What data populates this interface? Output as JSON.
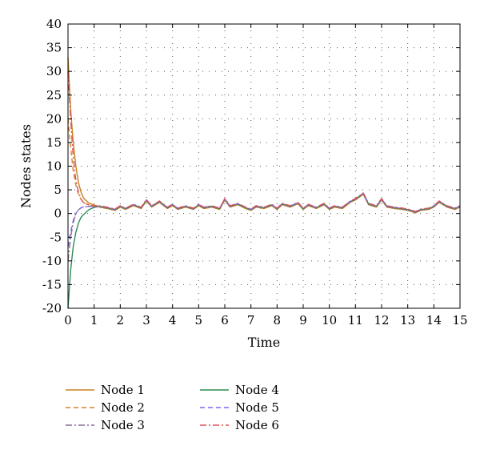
{
  "chart_data": {
    "type": "line",
    "title": "",
    "xlabel": "Time",
    "ylabel": "Nodes states",
    "xlim": [
      0,
      15
    ],
    "ylim": [
      -20,
      40
    ],
    "xticks": [
      0,
      1,
      2,
      3,
      4,
      5,
      6,
      7,
      8,
      9,
      10,
      11,
      12,
      13,
      14,
      15
    ],
    "yticks": [
      -20,
      -15,
      -10,
      -5,
      0,
      5,
      10,
      15,
      20,
      25,
      30,
      35,
      40
    ],
    "grid": true,
    "legend_position": "bottom",
    "consensus": {
      "t": [
        1.2,
        1.5,
        1.8,
        2.0,
        2.2,
        2.5,
        2.8,
        3.0,
        3.2,
        3.5,
        3.8,
        4.0,
        4.2,
        4.5,
        4.8,
        5.0,
        5.2,
        5.5,
        5.8,
        6.0,
        6.2,
        6.5,
        6.8,
        7.0,
        7.2,
        7.5,
        7.8,
        8.0,
        8.2,
        8.5,
        8.8,
        9.0,
        9.2,
        9.5,
        9.8,
        10.0,
        10.2,
        10.5,
        10.8,
        11.0,
        11.3,
        11.5,
        11.8,
        12.0,
        12.2,
        12.5,
        12.8,
        13.0,
        13.3,
        13.5,
        13.8,
        14.0,
        14.2,
        14.5,
        14.8,
        15.0
      ],
      "y": [
        1.5,
        1.2,
        0.8,
        1.5,
        1.0,
        1.8,
        1.2,
        2.8,
        1.5,
        2.5,
        1.2,
        1.8,
        1.0,
        1.5,
        1.0,
        1.8,
        1.2,
        1.5,
        1.0,
        3.0,
        1.5,
        2.0,
        1.2,
        0.8,
        1.5,
        1.2,
        1.8,
        1.0,
        2.0,
        1.5,
        2.2,
        1.0,
        1.8,
        1.2,
        2.0,
        1.0,
        1.5,
        1.2,
        2.5,
        3.0,
        4.2,
        2.0,
        1.5,
        3.0,
        1.5,
        1.2,
        1.0,
        0.8,
        0.3,
        0.8,
        1.0,
        1.5,
        2.5,
        1.5,
        1.0,
        1.5
      ]
    },
    "series": [
      {
        "name": "Node 1",
        "color": "#c8821e",
        "dash": "solid",
        "t": [
          0,
          0.1,
          0.2,
          0.3,
          0.4,
          0.5,
          0.6,
          0.8,
          1.0,
          1.2
        ],
        "y": [
          33,
          22,
          15,
          10,
          6.5,
          4.5,
          3.2,
          2.2,
          1.8,
          1.5
        ]
      },
      {
        "name": "Node 2",
        "color": "#d9822b",
        "dash": "6,4",
        "t": [
          0,
          0.1,
          0.2,
          0.3,
          0.4,
          0.5,
          0.6,
          0.8,
          1.0,
          1.2
        ],
        "y": [
          20,
          14,
          9,
          6,
          4,
          3,
          2.3,
          1.8,
          1.6,
          1.5
        ]
      },
      {
        "name": "Node 3",
        "color": "#8c6a9a",
        "dash": "8,3,2,3",
        "t": [
          0,
          0.1,
          0.2,
          0.3,
          0.4,
          0.5,
          0.6,
          0.8,
          1.0,
          1.2
        ],
        "y": [
          -10,
          -5,
          -2,
          0,
          0.8,
          1.2,
          1.4,
          1.5,
          1.5,
          1.5
        ]
      },
      {
        "name": "Node 4",
        "color": "#2e8b57",
        "dash": "solid",
        "t": [
          0,
          0.1,
          0.2,
          0.3,
          0.4,
          0.5,
          0.6,
          0.8,
          1.0,
          1.2
        ],
        "y": [
          -20,
          -12,
          -7,
          -4,
          -2,
          -0.8,
          -0.2,
          0.8,
          1.3,
          1.5
        ]
      },
      {
        "name": "Node 5",
        "color": "#7b68ee",
        "dash": "6,4",
        "t": [
          0,
          0.1,
          0.2,
          0.3,
          0.4,
          0.5,
          0.6,
          0.8,
          1.0,
          1.2
        ],
        "y": [
          -7,
          -4,
          -1.5,
          0,
          0.8,
          1.2,
          1.4,
          1.5,
          1.5,
          1.5
        ]
      },
      {
        "name": "Node 6",
        "color": "#e0505a",
        "dash": "8,3,2,3",
        "t": [
          0,
          0.1,
          0.2,
          0.3,
          0.4,
          0.5,
          0.6,
          0.8,
          1.0,
          1.2
        ],
        "y": [
          30,
          20,
          12,
          7,
          4.5,
          3,
          2.3,
          1.8,
          1.6,
          1.5
        ]
      }
    ]
  }
}
